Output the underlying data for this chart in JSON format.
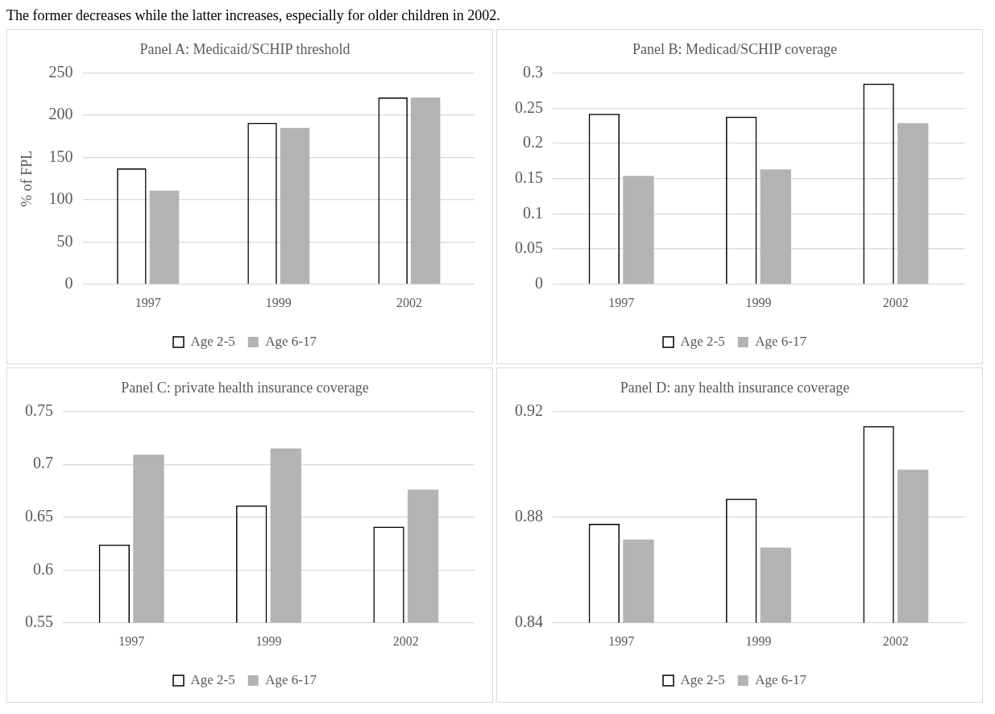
{
  "chart_data": [
    {
      "type": "bar",
      "title": "Panel A: Medicaid/SCHIP threshold",
      "ylabel": "% of FPL",
      "annotations": [
        "The former decreases while the latter increases, especially for older children in 2002."
      ],
      "categories": [
        "1997",
        "1999",
        "2002"
      ],
      "series": [
        {
          "name": "Age 2-5",
          "color": "#000000",
          "values": [
            137,
            191,
            221
          ]
        },
        {
          "name": "Age 6-17",
          "color": "#b3b3b3",
          "values": [
            111,
            185,
            221
          ]
        }
      ],
      "ylim": [
        0,
        250
      ],
      "yticks": [
        0,
        50,
        100,
        150,
        200,
        250
      ],
      "grid": "y",
      "legend": "bottom"
    },
    {
      "type": "bar",
      "title": "Panel B: Medicad/SCHIP coverage",
      "categories": [
        "1997",
        "1999",
        "2002"
      ],
      "series": [
        {
          "name": "Age 2-5",
          "color": "#000000",
          "values": [
            0.242,
            0.238,
            0.285
          ]
        },
        {
          "name": "Age 6-17",
          "color": "#b3b3b3",
          "values": [
            0.154,
            0.163,
            0.229
          ]
        }
      ],
      "ylim": [
        0,
        0.3
      ],
      "yticks": [
        0,
        0.05,
        0.1,
        0.15,
        0.2,
        0.25,
        0.3
      ],
      "grid": "y",
      "legend": "bottom"
    },
    {
      "type": "bar",
      "title": "Panel C: private health insurance coverage",
      "categories": [
        "1997",
        "1999",
        "2002"
      ],
      "series": [
        {
          "name": "Age 2-5",
          "color": "#000000",
          "values": [
            0.624,
            0.661,
            0.641
          ]
        },
        {
          "name": "Age 6-17",
          "color": "#b3b3b3",
          "values": [
            0.709,
            0.715,
            0.676
          ]
        }
      ],
      "ylim": [
        0.55,
        0.75
      ],
      "yticks": [
        0.55,
        0.6,
        0.65,
        0.7,
        0.75
      ],
      "grid": "y",
      "legend": "bottom"
    },
    {
      "type": "bar",
      "title": "Panel D: any health insurance coverage",
      "categories": [
        "1997",
        "1999",
        "2002"
      ],
      "series": [
        {
          "name": "Age 2-5",
          "color": "#000000",
          "values": [
            0.8775,
            0.887,
            0.9145
          ]
        },
        {
          "name": "Age 6-17",
          "color": "#b3b3b3",
          "values": [
            0.8715,
            0.8685,
            0.898
          ]
        }
      ],
      "ylim": [
        0.84,
        0.92
      ],
      "yticks": [
        0.84,
        0.88,
        0.92
      ],
      "grid": "y",
      "legend": "bottom"
    }
  ]
}
